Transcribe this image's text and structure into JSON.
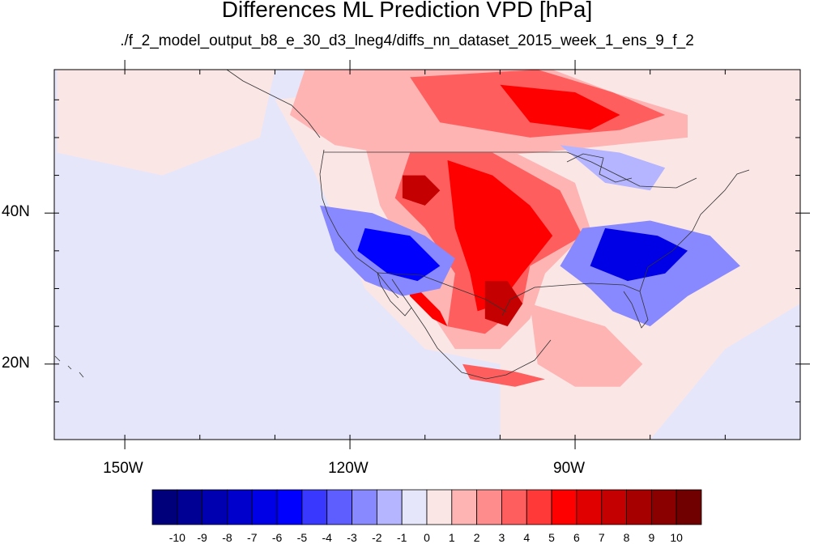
{
  "title": "Differences ML Prediction VPD [hPa]",
  "subtitle": "./f_2_model_output_b8_e_30_d3_lneg4/diffs_nn_dataset_2015_week_1_ens_9_f_2",
  "axes": {
    "lon_ticks": [
      {
        "lon": -150,
        "label": "150W"
      },
      {
        "lon": -120,
        "label": "120W"
      },
      {
        "lon": -90,
        "label": "90W"
      }
    ],
    "lat_ticks": [
      {
        "lat": 40,
        "label": "40N"
      },
      {
        "lat": 20,
        "label": "20N"
      }
    ],
    "lon_range": [
      -159.4,
      -60
    ],
    "lat_range": [
      10,
      59
    ]
  },
  "colorbar": {
    "labels": [
      "-10",
      "-9",
      "-8",
      "-7",
      "-6",
      "-5",
      "-4",
      "-3",
      "-2",
      "-1",
      "0",
      "1",
      "2",
      "3",
      "4",
      "5",
      "6",
      "7",
      "8",
      "9",
      "10"
    ],
    "colors": [
      "#00007a",
      "#000095",
      "#0000b0",
      "#0000cc",
      "#0000e6",
      "#0000ff",
      "#3838ff",
      "#5e5eff",
      "#8888ff",
      "#b4b4ff",
      "#e6e6fa",
      "#fbe6e6",
      "#ffb4b4",
      "#ff8c8c",
      "#ff5e5e",
      "#ff3838",
      "#ff0000",
      "#e00000",
      "#c40000",
      "#a60000",
      "#8a0000",
      "#700000"
    ]
  },
  "map_data": {
    "background": "#e6e6fa",
    "fields": [
      {
        "name": "ocean-east-pink",
        "color": "#fbe6e6",
        "points": [
          [
            -95,
            59
          ],
          [
            -60,
            59
          ],
          [
            -60,
            28
          ],
          [
            -70,
            22
          ],
          [
            -80,
            10
          ],
          [
            -100,
            10
          ],
          [
            -100,
            20
          ],
          [
            -110,
            22
          ],
          [
            -118,
            30
          ],
          [
            -125,
            46
          ],
          [
            -130,
            55
          ]
        ]
      },
      {
        "name": "pacific-pink",
        "color": "#fbe6e6",
        "points": [
          [
            -159,
            59
          ],
          [
            -130,
            59
          ],
          [
            -132,
            50
          ],
          [
            -145,
            45
          ],
          [
            -159,
            48
          ]
        ]
      },
      {
        "name": "canada-light-red",
        "color": "#ffb4b4",
        "points": [
          [
            -126,
            59
          ],
          [
            -93,
            59
          ],
          [
            -85,
            56
          ],
          [
            -75,
            53
          ],
          [
            -75,
            50
          ],
          [
            -95,
            48
          ],
          [
            -110,
            47
          ],
          [
            -122,
            49
          ],
          [
            -128,
            53
          ]
        ]
      },
      {
        "name": "canada-red",
        "color": "#ff5e5e",
        "points": [
          [
            -112,
            58
          ],
          [
            -95,
            59
          ],
          [
            -85,
            56
          ],
          [
            -78,
            53
          ],
          [
            -84,
            51
          ],
          [
            -96,
            50
          ],
          [
            -108,
            52
          ]
        ]
      },
      {
        "name": "canada-red-core",
        "color": "#ff0000",
        "points": [
          [
            -100,
            57
          ],
          [
            -90,
            56
          ],
          [
            -84,
            53
          ],
          [
            -88,
            51
          ],
          [
            -96,
            52
          ]
        ]
      },
      {
        "name": "plains-light-red",
        "color": "#ffb4b4",
        "points": [
          [
            -118,
            49
          ],
          [
            -100,
            49
          ],
          [
            -90,
            44
          ],
          [
            -88,
            38
          ],
          [
            -94,
            32
          ],
          [
            -96,
            26
          ],
          [
            -100,
            22
          ],
          [
            -106,
            22
          ],
          [
            -110,
            28
          ],
          [
            -112,
            34
          ],
          [
            -116,
            41
          ]
        ]
      },
      {
        "name": "plains-red",
        "color": "#ff5e5e",
        "points": [
          [
            -112,
            48
          ],
          [
            -101,
            48
          ],
          [
            -92,
            43
          ],
          [
            -89,
            37
          ],
          [
            -96,
            33
          ],
          [
            -97,
            28
          ],
          [
            -102,
            24
          ],
          [
            -107,
            25
          ],
          [
            -106,
            32
          ],
          [
            -110,
            38
          ],
          [
            -114,
            42
          ]
        ]
      },
      {
        "name": "plains-red-core",
        "color": "#ff0000",
        "points": [
          [
            -107,
            47
          ],
          [
            -101,
            45
          ],
          [
            -96,
            41
          ],
          [
            -93,
            37
          ],
          [
            -97,
            32
          ],
          [
            -100,
            28
          ],
          [
            -103,
            27
          ],
          [
            -104,
            32
          ],
          [
            -106,
            38
          ]
        ]
      },
      {
        "name": "wyoming-core",
        "color": "#c40000",
        "points": [
          [
            -113,
            45
          ],
          [
            -110,
            45
          ],
          [
            -108,
            43
          ],
          [
            -110,
            41
          ],
          [
            -113,
            42
          ]
        ]
      },
      {
        "name": "texas-core",
        "color": "#c40000",
        "points": [
          [
            -102,
            31
          ],
          [
            -99,
            31
          ],
          [
            -97,
            28
          ],
          [
            -99,
            25
          ],
          [
            -102,
            26
          ]
        ]
      },
      {
        "name": "baja-red",
        "color": "#ff0000",
        "points": [
          [
            -113,
            32
          ],
          [
            -111,
            30
          ],
          [
            -108,
            27
          ],
          [
            -107,
            25
          ],
          [
            -109,
            26
          ],
          [
            -112,
            29
          ]
        ]
      },
      {
        "name": "mexico-south-red",
        "color": "#ff5e5e",
        "points": [
          [
            -105,
            20
          ],
          [
            -98,
            19
          ],
          [
            -94,
            18
          ],
          [
            -98,
            17
          ],
          [
            -104,
            18
          ]
        ]
      },
      {
        "name": "gulf-pink",
        "color": "#ffb4b4",
        "points": [
          [
            -96,
            28
          ],
          [
            -86,
            25
          ],
          [
            -81,
            20
          ],
          [
            -84,
            17
          ],
          [
            -90,
            17
          ],
          [
            -95,
            20
          ]
        ]
      },
      {
        "name": "sw-blue",
        "color": "#8888ff",
        "points": [
          [
            -124,
            41
          ],
          [
            -117,
            40
          ],
          [
            -110,
            37
          ],
          [
            -106,
            34
          ],
          [
            -108,
            30
          ],
          [
            -113,
            29
          ],
          [
            -118,
            31
          ],
          [
            -122,
            35
          ]
        ]
      },
      {
        "name": "sw-blue-core",
        "color": "#0000ff",
        "points": [
          [
            -118,
            38
          ],
          [
            -112,
            37
          ],
          [
            -108,
            33
          ],
          [
            -111,
            31
          ],
          [
            -115,
            32
          ],
          [
            -119,
            35
          ]
        ]
      },
      {
        "name": "se-blue",
        "color": "#8888ff",
        "points": [
          [
            -89,
            38
          ],
          [
            -80,
            39
          ],
          [
            -72,
            37
          ],
          [
            -68,
            33
          ],
          [
            -75,
            29
          ],
          [
            -80,
            25
          ],
          [
            -85,
            27
          ],
          [
            -88,
            30
          ],
          [
            -92,
            33
          ]
        ]
      },
      {
        "name": "se-blue-core",
        "color": "#0000e6",
        "points": [
          [
            -86,
            38
          ],
          [
            -79,
            37
          ],
          [
            -75,
            35
          ],
          [
            -78,
            32
          ],
          [
            -83,
            31
          ],
          [
            -88,
            33
          ]
        ]
      },
      {
        "name": "ne-blue",
        "color": "#b4b4ff",
        "points": [
          [
            -92,
            49
          ],
          [
            -84,
            48
          ],
          [
            -78,
            46
          ],
          [
            -80,
            43
          ],
          [
            -86,
            44
          ]
        ]
      }
    ]
  }
}
